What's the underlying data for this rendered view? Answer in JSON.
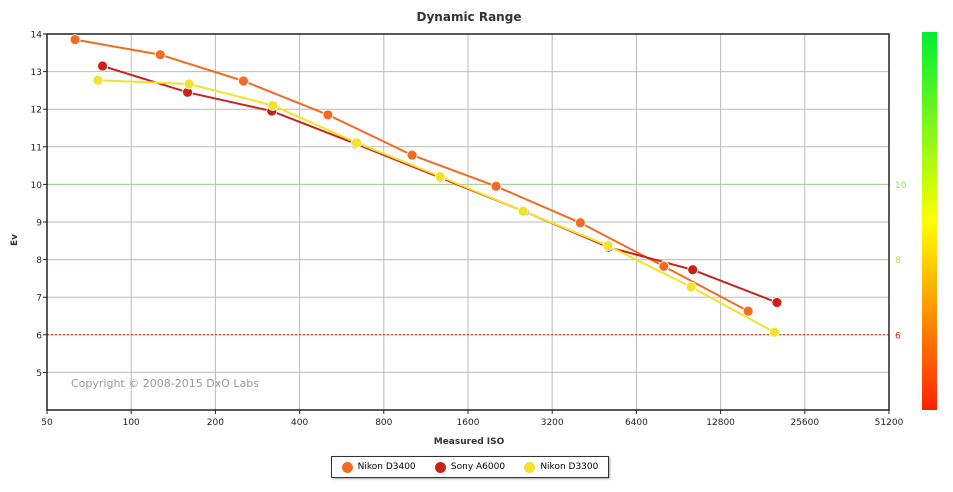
{
  "chart_data": {
    "type": "line",
    "title": "Dynamic Range",
    "xlabel": "Measured ISO",
    "ylabel": "Ev",
    "copyright": "Copyright © 2008-2015 DxO Labs",
    "x_scale": "log2",
    "xlim": [
      50,
      51200
    ],
    "ylim": [
      4,
      14
    ],
    "x_ticks": [
      50,
      100,
      200,
      400,
      800,
      1600,
      3200,
      6400,
      12800,
      25600,
      51200
    ],
    "x_tick_labels": [
      "50",
      "100",
      "200",
      "400",
      "800",
      "1600",
      "3200",
      "6400",
      "12800",
      "25600",
      "51200"
    ],
    "y_ticks": [
      5,
      6,
      7,
      8,
      9,
      10,
      11,
      12,
      13,
      14
    ],
    "y_tick_labels": [
      "5",
      "6",
      "7",
      "8",
      "9",
      "10",
      "11",
      "12",
      "13",
      "14"
    ],
    "grid": true,
    "reference_lines": [
      {
        "value": 10,
        "label": "10",
        "color": "#88dd66",
        "style": "dotted"
      },
      {
        "value": 8,
        "label": "8",
        "color": "#ddcc44",
        "style": "solid"
      },
      {
        "value": 6,
        "label": "6",
        "color": "#dd2200",
        "style": "dotted"
      }
    ],
    "color_scale": {
      "top": "#00ee33",
      "middle": "#ffff00",
      "bottom": "#ff2200"
    },
    "legend_position": "bottom-center",
    "series": [
      {
        "name": "Nikon D3400",
        "color": "#f26b22",
        "x": [
          63,
          127,
          252,
          505,
          1010,
          2016,
          4034,
          8023,
          16058
        ],
        "y": [
          13.85,
          13.45,
          12.75,
          11.85,
          10.78,
          9.95,
          8.98,
          7.82,
          6.63
        ]
      },
      {
        "name": "Sony A6000",
        "color": "#c8221a",
        "x": [
          79,
          159,
          318,
          636,
          1272,
          2543,
          5087,
          10175,
          20350
        ],
        "y": [
          13.15,
          12.45,
          11.95,
          11.08,
          10.18,
          9.28,
          8.33,
          7.73,
          6.86
        ]
      },
      {
        "name": "Nikon D3300",
        "color": "#f2e22a",
        "x": [
          76,
          161,
          321,
          639,
          1273,
          2519,
          5064,
          10051,
          19926
        ],
        "y": [
          12.77,
          12.67,
          12.1,
          11.11,
          10.21,
          9.29,
          8.37,
          7.27,
          6.07
        ]
      }
    ]
  }
}
